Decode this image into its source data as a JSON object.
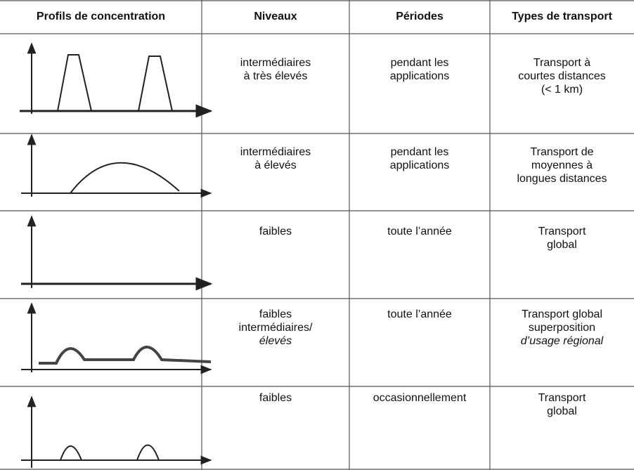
{
  "table": {
    "header": [
      "Profils de concentration",
      "Niveaux",
      "Périodes",
      "Types de transport"
    ],
    "rows": [
      {
        "niveaux": [
          "intermédiaires",
          "à très élevés"
        ],
        "periodes": [
          "pendant les",
          "applications"
        ],
        "transport": [
          "Transport à",
          "courtes distances",
          "(< 1 km)"
        ]
      },
      {
        "niveaux": [
          "intermédiaires",
          "à élevés"
        ],
        "periodes": [
          "pendant les",
          "applications"
        ],
        "transport": [
          "Transport de",
          "moyennes à",
          "longues distances"
        ]
      },
      {
        "niveaux": [
          "faibles"
        ],
        "periodes": [
          "toute l’année"
        ],
        "transport": [
          "Transport",
          "global"
        ]
      },
      {
        "niveaux": [
          "faibles",
          "intermédiaires/",
          "élevés"
        ],
        "periodes": [
          "toute l’année"
        ],
        "transport": [
          "Transport global",
          "superposition",
          "d’usage régional"
        ]
      },
      {
        "niveaux": [
          "faibles"
        ],
        "periodes": [
          "occasionnellement"
        ],
        "transport": [
          "Transport",
          "global"
        ]
      }
    ]
  }
}
